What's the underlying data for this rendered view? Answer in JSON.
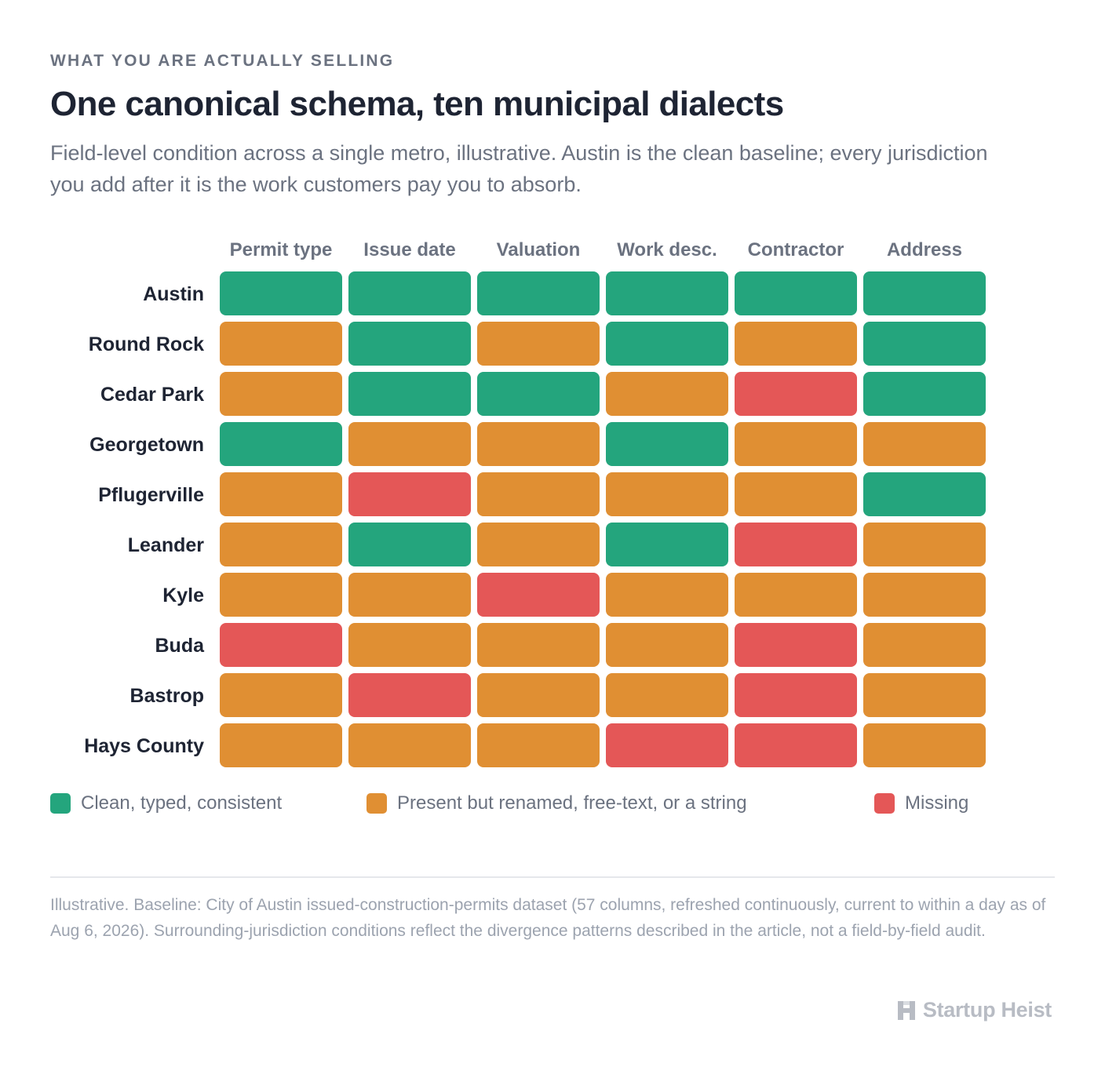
{
  "header": {
    "eyebrow": "WHAT YOU ARE ACTUALLY SELLING",
    "title": "One canonical schema, ten municipal dialects",
    "subtitle": "Field-level condition across a single metro, illustrative. Austin is the clean baseline; every jurisdiction you add after it is the work customers pay you to absorb."
  },
  "chart_data": {
    "type": "heatmap",
    "columns": [
      "Permit type",
      "Issue date",
      "Valuation",
      "Work desc.",
      "Contractor",
      "Address"
    ],
    "rows": [
      "Austin",
      "Round Rock",
      "Cedar Park",
      "Georgetown",
      "Pflugerville",
      "Leander",
      "Kyle",
      "Buda",
      "Bastrop",
      "Hays County"
    ],
    "cells": [
      [
        "clean",
        "clean",
        "clean",
        "clean",
        "clean",
        "clean"
      ],
      [
        "present",
        "clean",
        "present",
        "clean",
        "present",
        "clean"
      ],
      [
        "present",
        "clean",
        "clean",
        "present",
        "missing",
        "clean"
      ],
      [
        "clean",
        "present",
        "present",
        "clean",
        "present",
        "present"
      ],
      [
        "present",
        "missing",
        "present",
        "present",
        "present",
        "clean"
      ],
      [
        "present",
        "clean",
        "present",
        "clean",
        "missing",
        "present"
      ],
      [
        "present",
        "present",
        "missing",
        "present",
        "present",
        "present"
      ],
      [
        "missing",
        "present",
        "present",
        "present",
        "missing",
        "present"
      ],
      [
        "present",
        "missing",
        "present",
        "present",
        "missing",
        "present"
      ],
      [
        "present",
        "present",
        "present",
        "missing",
        "missing",
        "present"
      ]
    ],
    "colors": {
      "clean": "#24a57d",
      "present": "#e08f33",
      "missing": "#e45757"
    },
    "legend": [
      {
        "key": "clean",
        "label": "Clean, typed, consistent"
      },
      {
        "key": "present",
        "label": "Present but renamed, free-text, or a string"
      },
      {
        "key": "missing",
        "label": "Missing"
      }
    ]
  },
  "footnote": "Illustrative. Baseline: City of Austin issued-construction-permits dataset (57 columns, refreshed continuously, current to within a day as of Aug 6, 2026). Surrounding-jurisdiction conditions reflect the divergence patterns described in the article, not a field-by-field audit.",
  "brand": {
    "name": "Startup Heist",
    "icon": "h-logo-icon",
    "color": "#b8bcc4"
  }
}
